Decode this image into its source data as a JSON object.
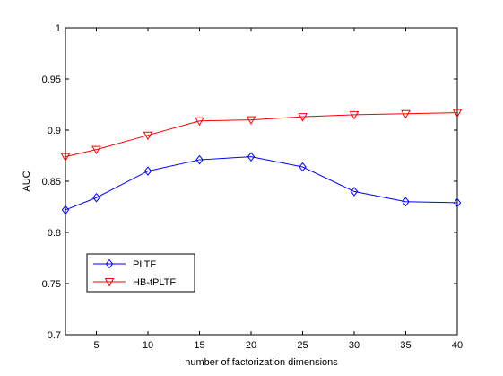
{
  "chart_data": {
    "type": "line",
    "x": [
      2,
      5,
      10,
      15,
      20,
      25,
      30,
      35,
      40
    ],
    "xticks": [
      5,
      10,
      15,
      20,
      25,
      30,
      35,
      40
    ],
    "yticks": [
      0.7,
      0.75,
      0.8,
      0.85,
      0.9,
      0.95,
      1
    ],
    "ytick_labels": [
      "0.7",
      "0.75",
      "0.8",
      "0.85",
      "0.9",
      "0.95",
      "1"
    ],
    "xlim": [
      2,
      40
    ],
    "ylim": [
      0.7,
      1.0
    ],
    "xlabel": "number of factorization dimensions",
    "ylabel": "AUC",
    "grid": false,
    "legend_position": "lower-left",
    "series": [
      {
        "name": "PLTF",
        "color": "#0000ff",
        "marker": "diamond",
        "values": [
          0.822,
          0.834,
          0.86,
          0.871,
          0.874,
          0.864,
          0.84,
          0.83,
          0.829
        ]
      },
      {
        "name": "HB-tPLTF",
        "color": "#ff0000",
        "marker": "triangle-down",
        "values": [
          0.874,
          0.881,
          0.895,
          0.909,
          0.91,
          0.913,
          0.915,
          0.916,
          0.917
        ]
      }
    ]
  }
}
